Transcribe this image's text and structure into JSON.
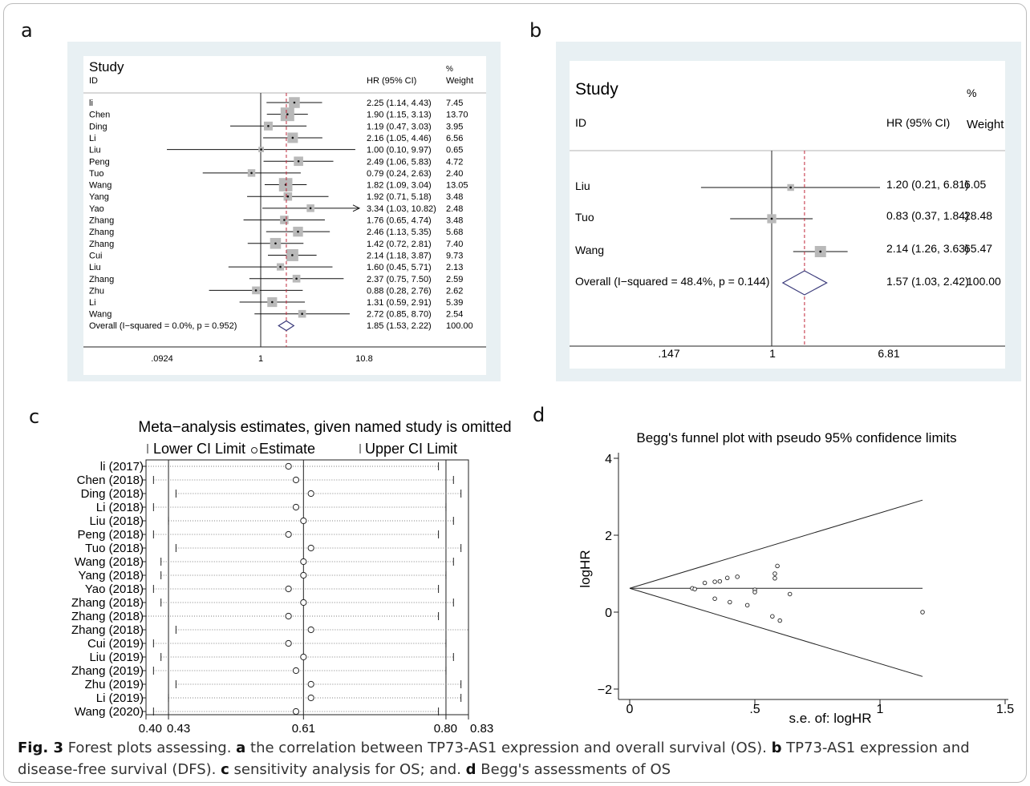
{
  "panels": {
    "a": {
      "label": "a",
      "header_study": "Study",
      "header_id": "ID",
      "header_hr": "HR (95% CI)",
      "header_pct": "%",
      "header_weight": "Weight",
      "overall_label": "Overall  (I−squared = 0.0%, p = 0.952)",
      "overall_text": "1.85 (1.53, 2.22)",
      "overall_weight": "100.00",
      "tick_labels": [
        ".0924",
        "1",
        "10.8"
      ]
    },
    "b": {
      "label": "b",
      "header_study": "Study",
      "header_id": "ID",
      "header_hr": "HR (95% CI)",
      "header_pct": "%",
      "header_weight": "Weight",
      "overall_label": "Overall  (I−squared = 48.4%, p = 0.144)",
      "overall_text": "1.57 (1.03, 2.42)",
      "overall_weight": "100.00",
      "tick_labels": [
        ".147",
        "1",
        "6.81"
      ]
    },
    "c": {
      "label": "c",
      "title": "Meta−analysis estimates, given named study is omitted",
      "legend_lower": "Lower CI Limit",
      "legend_estimate": "Estimate",
      "legend_upper": "Upper CI Limit",
      "tick_labels": [
        "0.40",
        "0.43",
        "0.61",
        "0.80",
        "0.83"
      ]
    },
    "d": {
      "label": "d",
      "title": "Begg's funnel plot with pseudo 95% confidence limits",
      "xlabel": "s.e. of: logHR",
      "ylabel": "logHR",
      "xtick_labels": [
        "0",
        ".5",
        "1",
        "1.5"
      ],
      "ytick_labels": [
        "4",
        "2",
        "0",
        "−2"
      ]
    }
  },
  "caption": {
    "fig": "Fig. 3",
    "t1": "  Forest plots assessing. ",
    "a": "a",
    "t2": " the correlation between TP73-AS1 expression and overall survival (OS). ",
    "b": "b",
    "t3": " TP73-AS1 expression and disease-free survival (DFS). ",
    "c": "c",
    "t4": " sensitivity analysis for OS; and. ",
    "d": "d",
    "t5": " Begg's assessments of OS"
  },
  "chart_data": [
    {
      "type": "forest",
      "panel": "a",
      "scale": "log",
      "xlim": [
        0.0924,
        10.8
      ],
      "ref_line": 1,
      "pooled": {
        "hr": 1.85,
        "lo": 1.53,
        "hi": 2.22,
        "weight": 100.0
      },
      "studies": [
        {
          "id": "li",
          "hr": 2.25,
          "lo": 1.14,
          "hi": 4.43,
          "text": "2.25 (1.14, 4.43)",
          "weight": "7.45",
          "w": 7.45
        },
        {
          "id": "Chen",
          "hr": 1.9,
          "lo": 1.15,
          "hi": 3.13,
          "text": "1.90 (1.15, 3.13)",
          "weight": "13.70",
          "w": 13.7
        },
        {
          "id": "Ding",
          "hr": 1.19,
          "lo": 0.47,
          "hi": 3.03,
          "text": "1.19 (0.47, 3.03)",
          "weight": "3.95",
          "w": 3.95
        },
        {
          "id": "Li",
          "hr": 2.16,
          "lo": 1.05,
          "hi": 4.46,
          "text": "2.16 (1.05, 4.46)",
          "weight": "6.56",
          "w": 6.56
        },
        {
          "id": "Liu",
          "hr": 1.0,
          "lo": 0.1,
          "hi": 9.97,
          "text": "1.00 (0.10, 9.97)",
          "weight": "0.65",
          "w": 0.65
        },
        {
          "id": "Peng",
          "hr": 2.49,
          "lo": 1.06,
          "hi": 5.83,
          "text": "2.49 (1.06, 5.83)",
          "weight": "4.72",
          "w": 4.72
        },
        {
          "id": "Tuo",
          "hr": 0.79,
          "lo": 0.24,
          "hi": 2.63,
          "text": "0.79 (0.24, 2.63)",
          "weight": "2.40",
          "w": 2.4
        },
        {
          "id": "Wang",
          "hr": 1.82,
          "lo": 1.09,
          "hi": 3.04,
          "text": "1.82 (1.09, 3.04)",
          "weight": "13.05",
          "w": 13.05
        },
        {
          "id": "Yang",
          "hr": 1.92,
          "lo": 0.71,
          "hi": 5.18,
          "text": "1.92 (0.71, 5.18)",
          "weight": "3.48",
          "w": 3.48
        },
        {
          "id": "Yao",
          "hr": 3.34,
          "lo": 1.03,
          "hi": 10.82,
          "text": "3.34 (1.03, 10.82)",
          "weight": "2.48",
          "w": 2.48,
          "arrow": true
        },
        {
          "id": "Zhang",
          "hr": 1.76,
          "lo": 0.65,
          "hi": 4.74,
          "text": "1.76 (0.65, 4.74)",
          "weight": "3.48",
          "w": 3.48
        },
        {
          "id": "Zhang",
          "hr": 2.46,
          "lo": 1.13,
          "hi": 5.35,
          "text": "2.46 (1.13, 5.35)",
          "weight": "5.68",
          "w": 5.68
        },
        {
          "id": "Zhang",
          "hr": 1.42,
          "lo": 0.72,
          "hi": 2.81,
          "text": "1.42 (0.72, 2.81)",
          "weight": "7.40",
          "w": 7.4
        },
        {
          "id": "Cui",
          "hr": 2.14,
          "lo": 1.18,
          "hi": 3.87,
          "text": "2.14 (1.18, 3.87)",
          "weight": "9.73",
          "w": 9.73
        },
        {
          "id": "Liu",
          "hr": 1.6,
          "lo": 0.45,
          "hi": 5.71,
          "text": "1.60 (0.45, 5.71)",
          "weight": "2.13",
          "w": 2.13
        },
        {
          "id": "Zhang",
          "hr": 2.37,
          "lo": 0.75,
          "hi": 7.5,
          "text": "2.37 (0.75, 7.50)",
          "weight": "2.59",
          "w": 2.59
        },
        {
          "id": "Zhu",
          "hr": 0.88,
          "lo": 0.28,
          "hi": 2.76,
          "text": "0.88 (0.28, 2.76)",
          "weight": "2.62",
          "w": 2.62
        },
        {
          "id": "Li",
          "hr": 1.31,
          "lo": 0.59,
          "hi": 2.91,
          "text": "1.31 (0.59, 2.91)",
          "weight": "5.39",
          "w": 5.39
        },
        {
          "id": "Wang",
          "hr": 2.72,
          "lo": 0.85,
          "hi": 8.7,
          "text": "2.72 (0.85, 8.70)",
          "weight": "2.54",
          "w": 2.54
        }
      ]
    },
    {
      "type": "forest",
      "panel": "b",
      "scale": "log",
      "xlim": [
        0.147,
        6.81
      ],
      "ref_line": 1,
      "pooled": {
        "hr": 1.57,
        "lo": 1.03,
        "hi": 2.42,
        "weight": 100.0
      },
      "studies": [
        {
          "id": "Liu",
          "hr": 1.2,
          "lo": 0.21,
          "hi": 6.81,
          "text": "1.20 (0.21, 6.81)",
          "weight": "6.05",
          "w": 6.05
        },
        {
          "id": "Tuo",
          "hr": 0.83,
          "lo": 0.37,
          "hi": 1.84,
          "text": "0.83 (0.37, 1.84)",
          "weight": "28.48",
          "w": 28.48
        },
        {
          "id": "Wang",
          "hr": 2.14,
          "lo": 1.26,
          "hi": 3.63,
          "text": "2.14 (1.26, 3.63)",
          "weight": "65.47",
          "w": 65.47
        }
      ]
    },
    {
      "type": "sensitivity",
      "panel": "c",
      "xlim": [
        0.4,
        0.83
      ],
      "ref_lines": [
        0.43,
        0.61,
        0.8
      ],
      "studies": [
        {
          "label": "li (2017)",
          "lo": 0.4,
          "est": 0.59,
          "hi": 0.79
        },
        {
          "label": "Chen (2018)",
          "lo": 0.41,
          "est": 0.6,
          "hi": 0.81
        },
        {
          "label": "Ding (2018)",
          "lo": 0.44,
          "est": 0.62,
          "hi": 0.82
        },
        {
          "label": "Li (2018)",
          "lo": 0.41,
          "est": 0.6,
          "hi": 0.8
        },
        {
          "label": "Liu (2018)",
          "lo": 0.43,
          "est": 0.61,
          "hi": 0.81
        },
        {
          "label": "Peng (2018)",
          "lo": 0.41,
          "est": 0.59,
          "hi": 0.79
        },
        {
          "label": "Tuo (2018)",
          "lo": 0.44,
          "est": 0.62,
          "hi": 0.82
        },
        {
          "label": "Wang (2018)",
          "lo": 0.42,
          "est": 0.61,
          "hi": 0.81
        },
        {
          "label": "Yang (2018)",
          "lo": 0.42,
          "est": 0.61,
          "hi": 0.8
        },
        {
          "label": "Yao (2018)",
          "lo": 0.41,
          "est": 0.59,
          "hi": 0.79
        },
        {
          "label": "Zhang (2018)",
          "lo": 0.42,
          "est": 0.61,
          "hi": 0.81
        },
        {
          "label": "Zhang (2018)",
          "lo": 0.4,
          "est": 0.59,
          "hi": 0.79
        },
        {
          "label": "Zhang (2018)",
          "lo": 0.44,
          "est": 0.62,
          "hi": 0.83
        },
        {
          "label": "Cui (2019)",
          "lo": 0.41,
          "est": 0.59,
          "hi": 0.8
        },
        {
          "label": "Liu (2019)",
          "lo": 0.42,
          "est": 0.61,
          "hi": 0.81
        },
        {
          "label": "Zhang (2019)",
          "lo": 0.41,
          "est": 0.6,
          "hi": 0.8
        },
        {
          "label": "Zhu (2019)",
          "lo": 0.44,
          "est": 0.62,
          "hi": 0.82
        },
        {
          "label": "Li (2019)",
          "lo": 0.43,
          "est": 0.62,
          "hi": 0.82
        },
        {
          "label": "Wang (2020)",
          "lo": 0.41,
          "est": 0.6,
          "hi": 0.79
        }
      ]
    },
    {
      "type": "scatter",
      "panel": "d",
      "xlim": [
        0,
        1.5
      ],
      "ylim": [
        -2,
        4
      ],
      "pooled_logHR": 0.62,
      "funnel_z": 1.96,
      "points": [
        {
          "x": 0.25,
          "y": 0.62
        },
        {
          "x": 0.26,
          "y": 0.6
        },
        {
          "x": 0.3,
          "y": 0.76
        },
        {
          "x": 0.34,
          "y": 0.79
        },
        {
          "x": 0.36,
          "y": 0.8
        },
        {
          "x": 0.39,
          "y": 0.89
        },
        {
          "x": 0.43,
          "y": 0.92
        },
        {
          "x": 0.34,
          "y": 0.35
        },
        {
          "x": 0.4,
          "y": 0.26
        },
        {
          "x": 0.47,
          "y": 0.18
        },
        {
          "x": 0.5,
          "y": 0.58
        },
        {
          "x": 0.5,
          "y": 0.52
        },
        {
          "x": 0.58,
          "y": 0.88
        },
        {
          "x": 0.58,
          "y": 1.0
        },
        {
          "x": 0.59,
          "y": 1.2
        },
        {
          "x": 0.64,
          "y": 0.47
        },
        {
          "x": 0.57,
          "y": -0.11
        },
        {
          "x": 0.6,
          "y": -0.22
        },
        {
          "x": 1.17,
          "y": 0.0
        }
      ]
    }
  ]
}
